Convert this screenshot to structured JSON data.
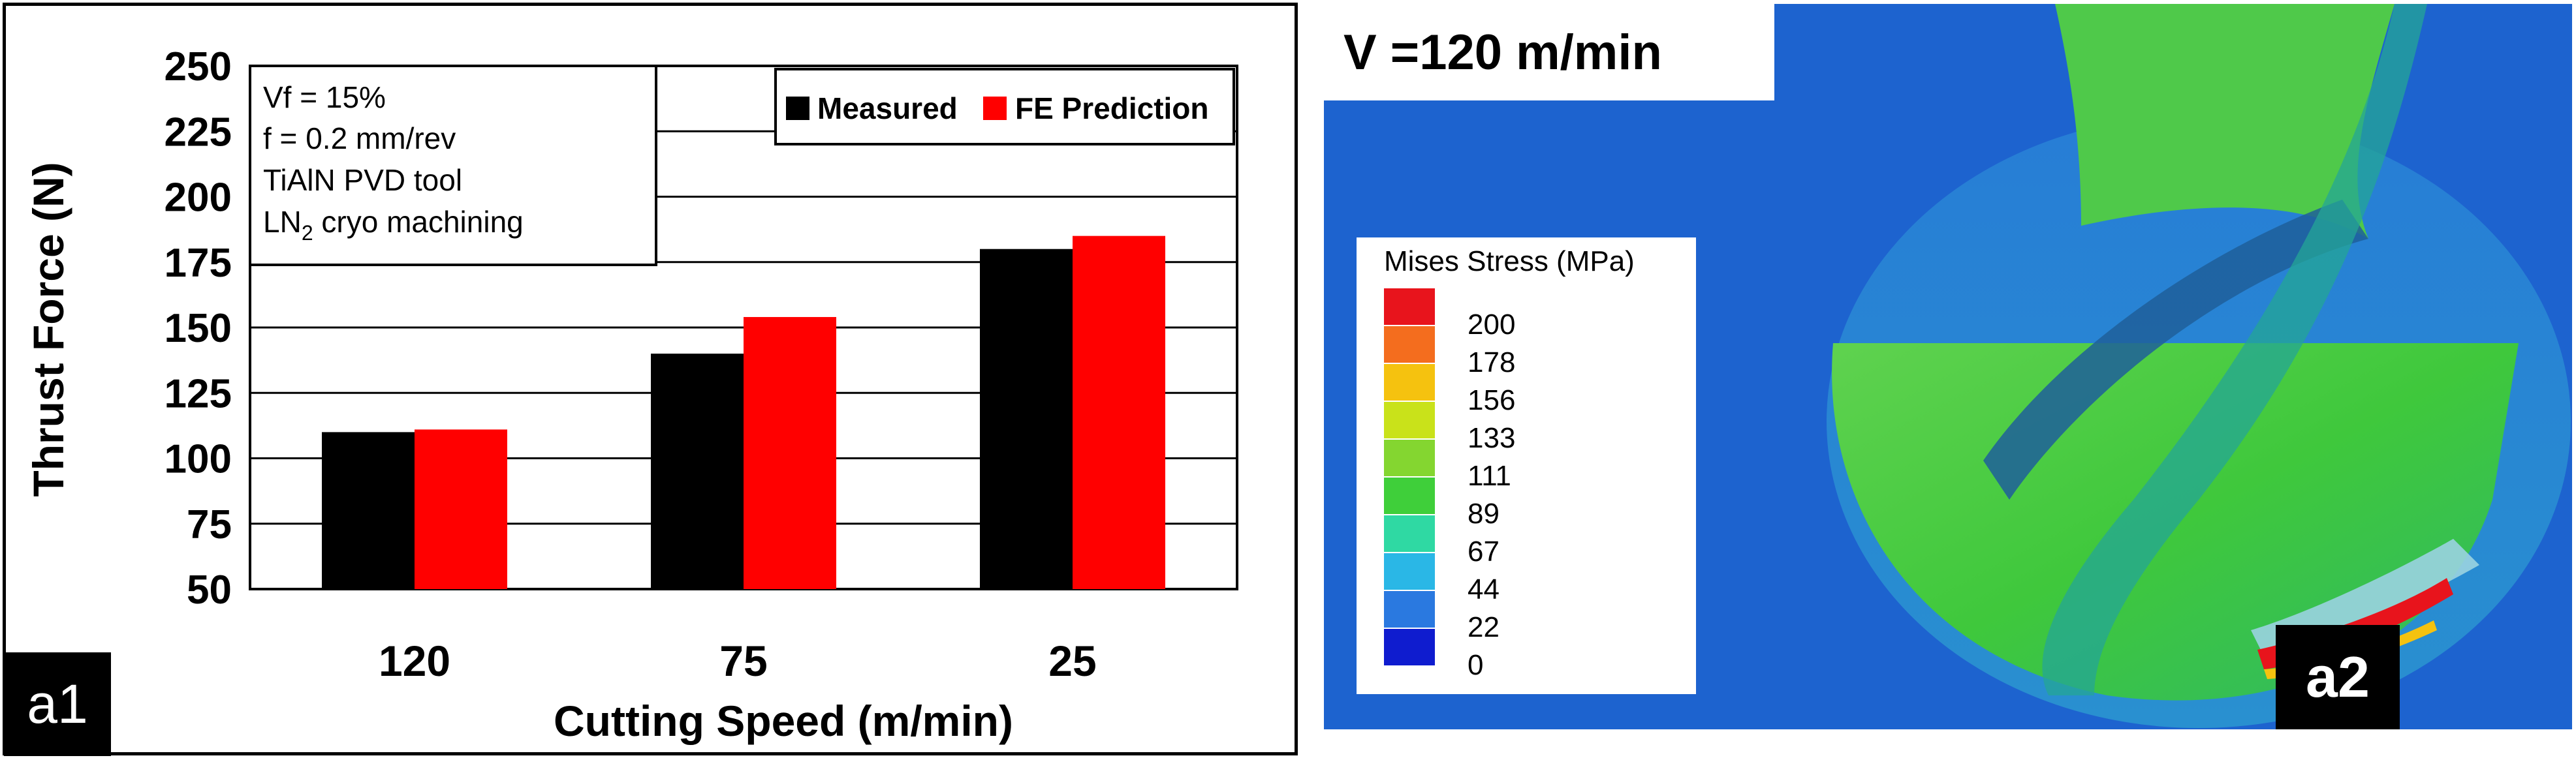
{
  "chart_data": {
    "type": "bar",
    "categories": [
      "120",
      "75",
      "25"
    ],
    "series": [
      {
        "name": "Measured",
        "color": "#000000",
        "values": [
          110,
          140,
          180
        ]
      },
      {
        "name": "FE Prediction",
        "color": "#ff0000",
        "values": [
          111,
          154,
          185
        ]
      }
    ],
    "xlabel": "Cutting Speed (m/min)",
    "ylabel": "Thrust Force (N)",
    "ylim": [
      50,
      250
    ],
    "yticks": [
      "250",
      "225",
      "200",
      "175",
      "150",
      "125",
      "100",
      "75",
      "50"
    ],
    "grid": true,
    "legend_position": "top-right",
    "annotation": {
      "line1": "Vf = 15%",
      "line2": "f = 0.2 mm/rev",
      "line3": "TiAlN PVD tool",
      "line4_prefix": "LN",
      "line4_sub": "2",
      "line4_suffix": " cryo machining"
    },
    "panel_label": "a1"
  },
  "simulation": {
    "speed_label": "V =120 m/min",
    "legend_title": "Mises Stress (MPa)",
    "scale": [
      {
        "label": "200",
        "color": "#e8141c"
      },
      {
        "label": "178",
        "color": "#f46d1e"
      },
      {
        "label": "156",
        "color": "#f5c20f"
      },
      {
        "label": "133",
        "color": "#c9e21a"
      },
      {
        "label": "111",
        "color": "#84d630"
      },
      {
        "label": "89",
        "color": "#3fcf3a"
      },
      {
        "label": "67",
        "color": "#2fd9a3"
      },
      {
        "label": "44",
        "color": "#2ab7e6"
      },
      {
        "label": "22",
        "color": "#2a79e0"
      },
      {
        "label": "0",
        "color": "#0f1ccf"
      }
    ],
    "panel_label": "a2"
  }
}
